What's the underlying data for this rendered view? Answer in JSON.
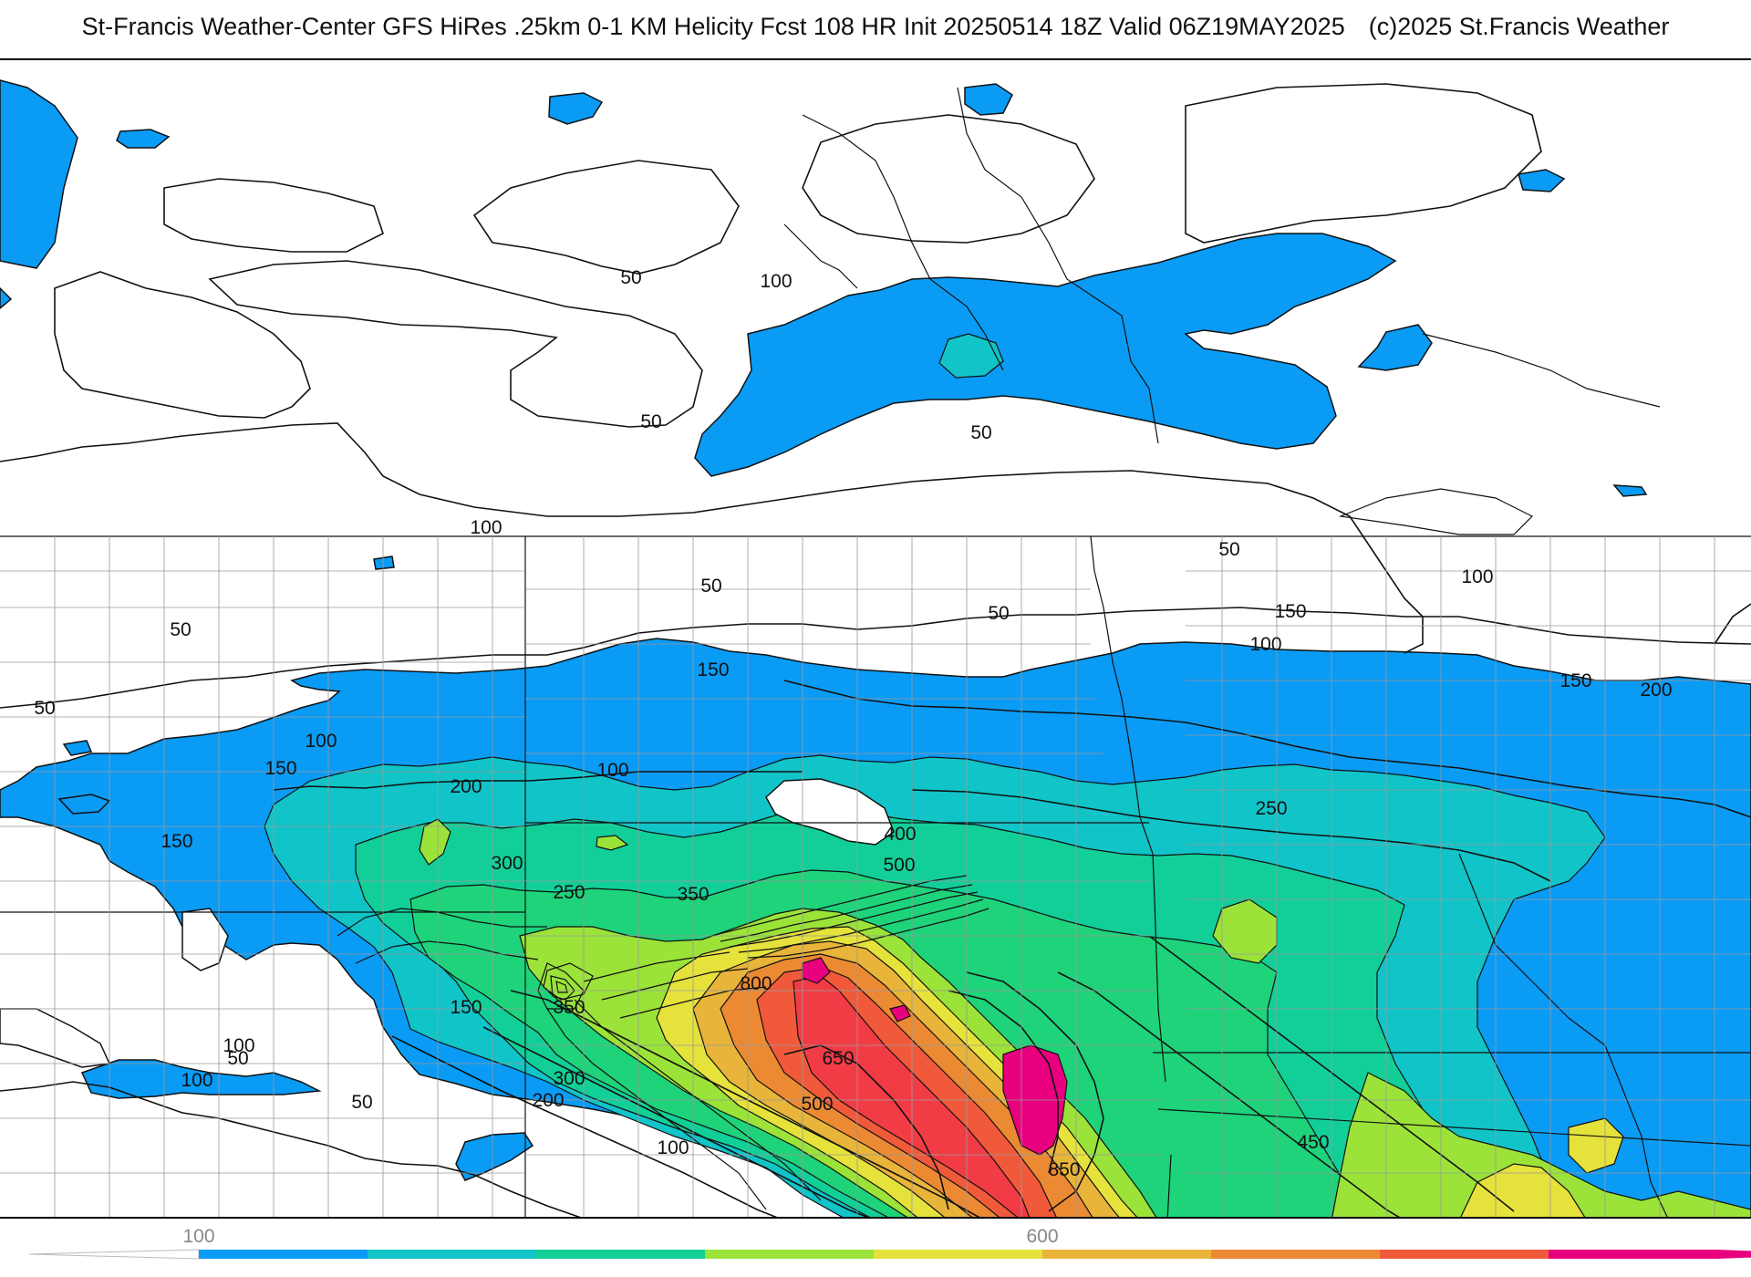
{
  "header": {
    "title": "St-Francis Weather-Center GFS HiRes .25km 0-1 KM Helicity Fcst 108 HR Init 20250514 18Z  Valid 06Z19MAY2025",
    "copyright": "(c)2025 St.Francis Weather"
  },
  "map": {
    "contour_labels": [
      "50",
      "50",
      "50",
      "100",
      "50",
      "100",
      "150",
      "50",
      "50",
      "50",
      "50",
      "150",
      "100",
      "100",
      "150",
      "200",
      "150",
      "100",
      "150",
      "100",
      "200",
      "250",
      "400",
      "500",
      "300",
      "250",
      "350",
      "100",
      "800",
      "150",
      "350",
      "300",
      "200",
      "650",
      "500",
      "100",
      "450",
      "850",
      "50",
      "100",
      "50"
    ],
    "fill_colors": {
      "white": "#ffffff",
      "blue": "#0a9bf5",
      "teal": "#10c4c8",
      "green_teal": "#12cf98",
      "green": "#1ed37a",
      "lime": "#9be339",
      "yellow": "#e6e23c",
      "gold": "#e8b43a",
      "orange": "#ec8a33",
      "red_orange": "#f05a3a",
      "red": "#f23c45",
      "magenta": "#e8007f"
    },
    "border_color": "#9a9a9a",
    "contour_color": "#111111"
  },
  "colorbar": {
    "tick_labels": [
      "100",
      "600"
    ],
    "segment_colors": [
      "#0a9bf5",
      "#10c4c8",
      "#12cf98",
      "#9be339",
      "#e6e23c",
      "#e8b43a",
      "#ec8a33",
      "#f05a3a",
      "#e8007f"
    ]
  }
}
